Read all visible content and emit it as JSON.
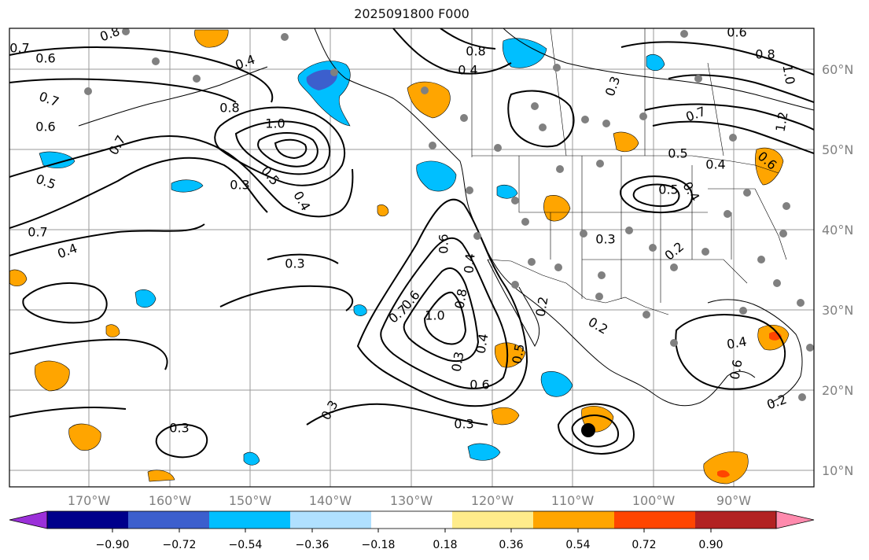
{
  "title": "2025091800 F000",
  "lon_labels": [
    "170°W",
    "160°W",
    "150°W",
    "140°W",
    "130°W",
    "120°W",
    "110°W",
    "100°W",
    "90°W"
  ],
  "lat_labels": [
    "60°N",
    "50°N",
    "40°N",
    "30°N",
    "20°N",
    "10°N"
  ],
  "colorbar": {
    "ticks": [
      "−0.90",
      "−0.72",
      "−0.54",
      "−0.36",
      "−0.18",
      "0.18",
      "0.36",
      "0.54",
      "0.72",
      "0.90"
    ],
    "colors": [
      "#9b30d9",
      "#00008b",
      "#3c5fcd",
      "#00bfff",
      "#b0e0ff",
      "#ffffff",
      "#ffec8b",
      "#ffa500",
      "#ff4500",
      "#b22222",
      "#ff8aad"
    ]
  },
  "contour_labels": [
    {
      "text": "0.8"
    },
    {
      "text": "0.7"
    },
    {
      "text": "0.6"
    },
    {
      "text": "0.4"
    },
    {
      "text": "0.7"
    },
    {
      "text": "0.6"
    },
    {
      "text": "0.8"
    },
    {
      "text": "1.0"
    },
    {
      "text": "0.7"
    },
    {
      "text": "0.5"
    },
    {
      "text": "0.3"
    },
    {
      "text": "0.5"
    },
    {
      "text": "0.4"
    },
    {
      "text": "0.7"
    },
    {
      "text": "0.4"
    },
    {
      "text": "0.3"
    },
    {
      "text": "0.6"
    },
    {
      "text": "0.6"
    },
    {
      "text": "0.7"
    },
    {
      "text": "1.0"
    },
    {
      "text": "0.8"
    },
    {
      "text": "0.4"
    },
    {
      "text": "0.6"
    },
    {
      "text": "0.3"
    },
    {
      "text": "0.3"
    },
    {
      "text": "0.3"
    },
    {
      "text": "0.8"
    },
    {
      "text": "0.4"
    },
    {
      "text": "0.3"
    },
    {
      "text": "0.7"
    },
    {
      "text": "0.5"
    },
    {
      "text": "0.4"
    },
    {
      "text": "0.5"
    },
    {
      "text": "0.4"
    },
    {
      "text": "0.6"
    },
    {
      "text": "0.8"
    },
    {
      "text": "1.0"
    },
    {
      "text": "1.2"
    },
    {
      "text": "0.6"
    },
    {
      "text": "0.3"
    },
    {
      "text": "0.2"
    },
    {
      "text": "0.2"
    },
    {
      "text": "0.2"
    },
    {
      "text": "0.4"
    },
    {
      "text": "0.6"
    },
    {
      "text": "0.2"
    },
    {
      "text": "0.5"
    },
    {
      "text": "0.4"
    },
    {
      "text": "0.3"
    }
  ]
}
